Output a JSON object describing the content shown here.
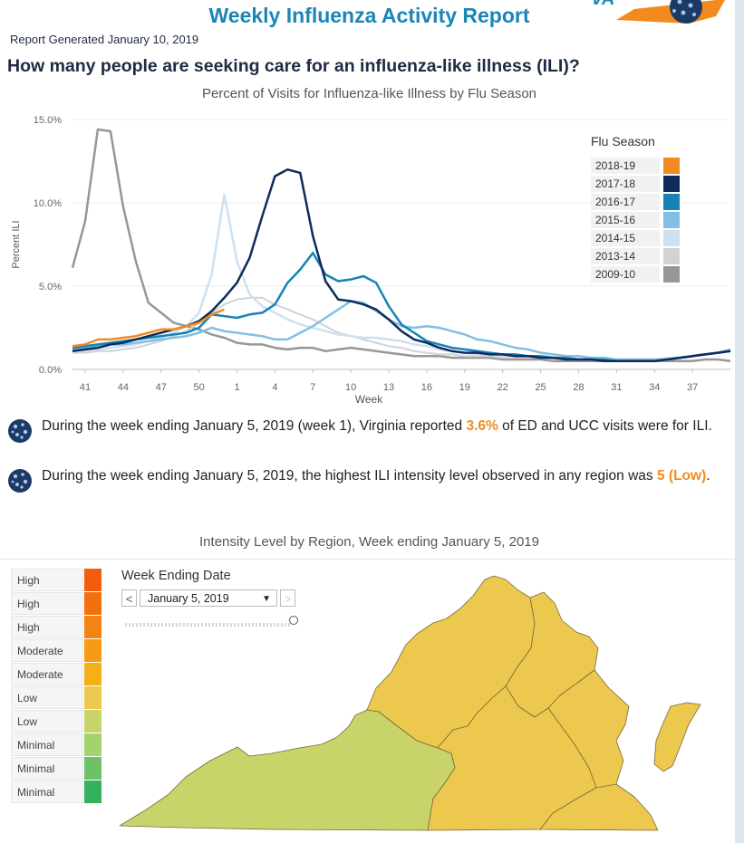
{
  "header": {
    "title": "Weekly Influenza Activity Report",
    "generated": "Report Generated January 10, 2019",
    "question": "How many people are seeking care for an influenza-like illness (ILI)?"
  },
  "colors": {
    "accent_title": "#1a85b8",
    "highlight": "#f28b1d",
    "map_low": "#ecc84e",
    "map_minimal": "#c8d46a"
  },
  "chart_data": {
    "type": "line",
    "title": "Percent of Visits for Influenza-like Illness by Flu Season",
    "xlabel": "Week",
    "ylabel": "Percent ILI",
    "yticks": [
      "15.0%",
      "10.0%",
      "5.0%",
      "0.0%"
    ],
    "ylim": [
      0,
      15
    ],
    "x_index_range": [
      0,
      52
    ],
    "xtick_labels": [
      "41",
      "44",
      "47",
      "50",
      "1",
      "4",
      "7",
      "10",
      "13",
      "16",
      "19",
      "22",
      "25",
      "28",
      "31",
      "34",
      "37"
    ],
    "xtick_indexes": [
      1,
      4,
      7,
      10,
      13,
      16,
      19,
      22,
      25,
      28,
      31,
      34,
      37,
      40,
      43,
      46,
      49
    ],
    "legend_title": "Flu Season",
    "series": [
      {
        "name": "2009-10",
        "color": "#979797",
        "width": 2.5,
        "values": [
          6.1,
          8.9,
          14.4,
          14.3,
          9.8,
          6.5,
          4.0,
          3.4,
          2.8,
          2.6,
          2.4,
          2.1,
          1.9,
          1.6,
          1.5,
          1.5,
          1.3,
          1.2,
          1.3,
          1.3,
          1.1,
          1.2,
          1.3,
          1.2,
          1.1,
          1.0,
          0.9,
          0.8,
          0.8,
          0.8,
          0.7,
          0.7,
          0.7,
          0.7,
          0.6,
          0.6,
          0.6,
          0.6,
          0.5,
          0.5,
          0.5,
          0.5,
          0.5,
          0.5,
          0.5,
          0.5,
          0.5,
          0.5,
          0.5,
          0.5,
          0.6,
          0.6,
          0.5
        ]
      },
      {
        "name": "2013-14",
        "color": "#d0d3d6",
        "width": 2,
        "values": [
          1.0,
          1.0,
          1.1,
          1.1,
          1.2,
          1.3,
          1.5,
          1.7,
          2.0,
          2.3,
          2.8,
          3.4,
          3.9,
          4.2,
          4.3,
          4.3,
          3.9,
          3.6,
          3.3,
          3.0,
          2.6,
          2.2,
          2.0,
          1.8,
          1.6,
          1.4,
          1.3,
          1.1,
          1.0,
          0.9,
          0.9,
          0.8,
          0.8,
          0.8,
          0.7,
          0.7,
          0.7,
          0.7,
          0.6,
          0.6,
          0.6,
          0.6,
          0.6,
          0.6,
          0.6,
          0.6,
          0.6,
          0.7,
          0.7,
          0.8,
          0.9,
          1.0,
          1.1
        ]
      },
      {
        "name": "2014-15",
        "color": "#cfe1f0",
        "width": 2.5,
        "values": [
          1.1,
          1.1,
          1.2,
          1.3,
          1.4,
          1.5,
          1.7,
          1.9,
          2.2,
          2.6,
          3.4,
          5.7,
          10.5,
          6.5,
          4.5,
          3.8,
          3.4,
          3.0,
          2.7,
          2.5,
          2.3,
          2.1,
          2.0,
          1.9,
          1.9,
          1.8,
          1.7,
          1.5,
          1.4,
          1.2,
          1.1,
          1.0,
          0.9,
          0.9,
          0.8,
          0.8,
          0.8,
          0.7,
          0.7,
          0.7,
          0.6,
          0.6,
          0.6,
          0.6,
          0.6,
          0.6,
          0.6,
          0.7,
          0.7,
          0.8,
          0.9,
          1.0,
          1.1
        ]
      },
      {
        "name": "2015-16",
        "color": "#82bfe3",
        "width": 2.5,
        "values": [
          1.2,
          1.3,
          1.4,
          1.5,
          1.5,
          1.6,
          1.7,
          1.8,
          1.9,
          2.0,
          2.2,
          2.5,
          2.3,
          2.2,
          2.1,
          2.0,
          1.8,
          1.8,
          2.2,
          2.6,
          3.1,
          3.6,
          4.1,
          4.0,
          3.5,
          3.0,
          2.6,
          2.5,
          2.6,
          2.5,
          2.3,
          2.1,
          1.8,
          1.7,
          1.5,
          1.3,
          1.2,
          1.0,
          0.9,
          0.8,
          0.8,
          0.7,
          0.7,
          0.6,
          0.6,
          0.6,
          0.6,
          0.6,
          0.7,
          0.8,
          0.9,
          1.0,
          1.2
        ]
      },
      {
        "name": "2016-17",
        "color": "#1582b9",
        "width": 2.5,
        "values": [
          1.3,
          1.4,
          1.5,
          1.6,
          1.7,
          1.8,
          1.9,
          2.0,
          2.1,
          2.2,
          2.5,
          3.3,
          3.2,
          3.1,
          3.3,
          3.4,
          3.9,
          5.2,
          6.0,
          7.0,
          5.7,
          5.3,
          5.4,
          5.6,
          5.2,
          3.8,
          2.7,
          2.2,
          1.7,
          1.5,
          1.3,
          1.2,
          1.1,
          1.0,
          0.9,
          0.9,
          0.8,
          0.8,
          0.7,
          0.7,
          0.6,
          0.6,
          0.6,
          0.5,
          0.5,
          0.5,
          0.5,
          0.6,
          0.7,
          0.8,
          0.9,
          1.0,
          1.1
        ]
      },
      {
        "name": "2017-18",
        "color": "#0d2b5c",
        "width": 2.5,
        "values": [
          1.1,
          1.2,
          1.3,
          1.5,
          1.6,
          1.8,
          2.0,
          2.2,
          2.4,
          2.6,
          2.9,
          3.5,
          4.3,
          5.2,
          6.7,
          9.2,
          11.6,
          12.0,
          11.8,
          8.0,
          5.3,
          4.2,
          4.1,
          3.9,
          3.6,
          3.0,
          2.3,
          1.8,
          1.6,
          1.3,
          1.1,
          1.0,
          1.0,
          0.9,
          0.9,
          0.8,
          0.8,
          0.7,
          0.7,
          0.6,
          0.6,
          0.6,
          0.5,
          0.5,
          0.5,
          0.5,
          0.5,
          0.6,
          0.7,
          0.8,
          0.9,
          1.0,
          1.1
        ]
      },
      {
        "name": "2018-19",
        "color": "#f28b1d",
        "width": 2.5,
        "values": [
          1.4,
          1.5,
          1.8,
          1.8,
          1.9,
          2.0,
          2.2,
          2.4,
          2.4,
          2.6,
          2.8,
          3.3,
          3.6
        ]
      }
    ]
  },
  "bullets": [
    {
      "prefix": "During the week ending January 5, 2019 (week 1), Virginia reported ",
      "highlight": "3.6%",
      "suffix": " of ED and UCC visits were for ILI."
    },
    {
      "prefix": "During the week ending January 5, 2019, the highest ILI intensity level observed in any region was ",
      "highlight": "5 (Low)",
      "suffix": "."
    }
  ],
  "map": {
    "title": "Intensity Level by Region, Week ending January 5, 2019",
    "levels": [
      {
        "label": "High",
        "color": "#f25c0c"
      },
      {
        "label": "High",
        "color": "#f4700f"
      },
      {
        "label": "High",
        "color": "#f58312"
      },
      {
        "label": "Moderate",
        "color": "#f79a14"
      },
      {
        "label": "Moderate",
        "color": "#f6b015"
      },
      {
        "label": "Low",
        "color": "#ecc84e"
      },
      {
        "label": "Low",
        "color": "#c8d46a"
      },
      {
        "label": "Minimal",
        "color": "#a4d36b"
      },
      {
        "label": "Minimal",
        "color": "#6ec265"
      },
      {
        "label": "Minimal",
        "color": "#35b05c"
      }
    ],
    "week_label": "Week Ending Date",
    "selected_week": "January 5, 2019",
    "prev_glyph": "<",
    "next_glyph": ">",
    "caret_glyph": "▼"
  }
}
